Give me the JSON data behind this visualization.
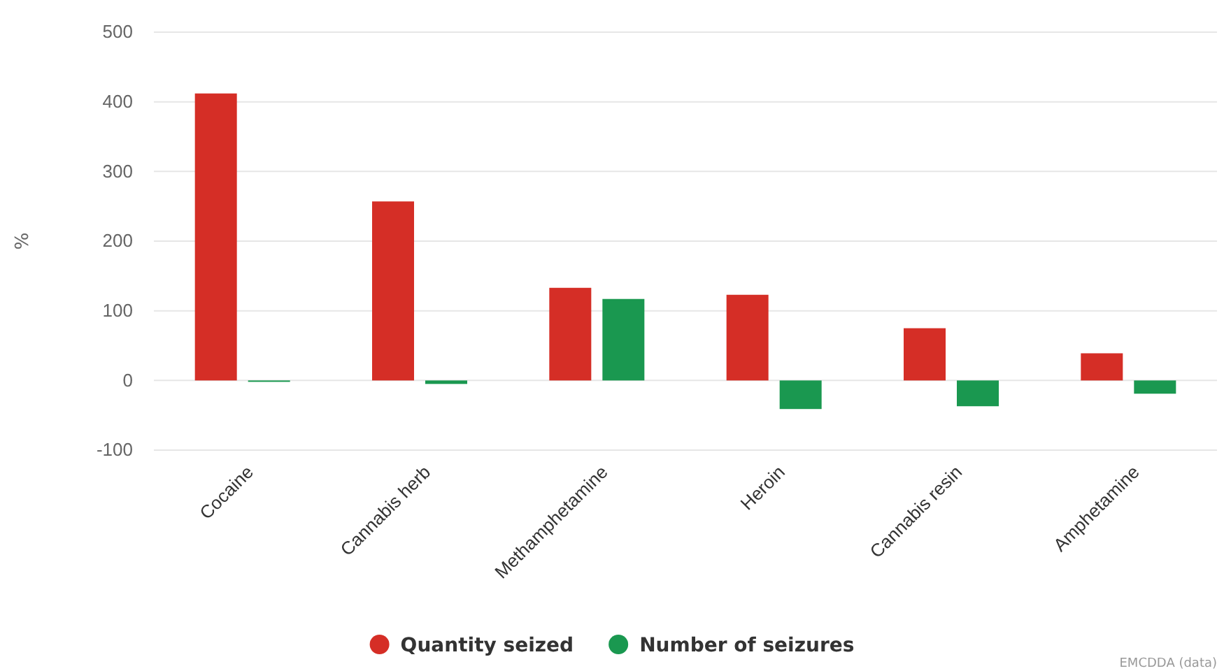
{
  "chart_data": {
    "type": "bar",
    "ylabel": "%",
    "categories": [
      "Cocaine",
      "Cannabis herb",
      "Methamphetamine",
      "Heroin",
      "Cannabis resin",
      "Amphetamine"
    ],
    "series": [
      {
        "name": "Quantity seized",
        "color": "#d52e26",
        "values": [
          412,
          257,
          133,
          123,
          75,
          39
        ]
      },
      {
        "name": "Number of seizures",
        "color": "#1a9850",
        "values": [
          -2,
          -5,
          117,
          -41,
          -37,
          -19
        ]
      }
    ],
    "ylim": [
      -100,
      500
    ],
    "yticks": [
      -100,
      0,
      100,
      200,
      300,
      400,
      500
    ],
    "grid": "y",
    "legend": "bottom",
    "annotations": [
      "EMCDDA (data)"
    ]
  }
}
